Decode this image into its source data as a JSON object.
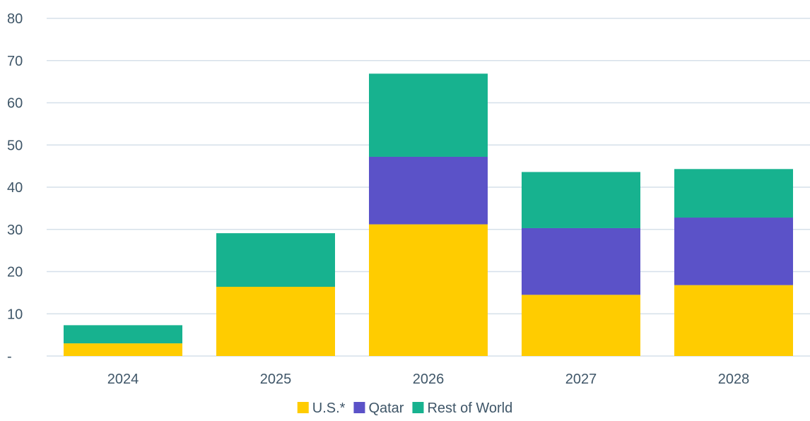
{
  "chart_data": {
    "type": "bar",
    "stacked": true,
    "categories": [
      "2024",
      "2025",
      "2026",
      "2027",
      "2028"
    ],
    "series": [
      {
        "name": "U.S.*",
        "color": "#ffcc00",
        "values": [
          3,
          16.4,
          31.2,
          14.5,
          16.8
        ]
      },
      {
        "name": "Qatar",
        "color": "#5b52c8",
        "values": [
          0,
          0,
          16,
          15.8,
          16
        ]
      },
      {
        "name": "Rest of World",
        "color": "#17b28f",
        "values": [
          4.3,
          12.7,
          19.7,
          13.3,
          11.5
        ]
      }
    ],
    "yticks": [
      "-",
      "10",
      "20",
      "30",
      "40",
      "50",
      "60",
      "70",
      "80"
    ],
    "ylim": [
      0,
      80
    ],
    "grid": true,
    "legend": "bottom-center",
    "title": "",
    "xlabel": "",
    "ylabel": ""
  }
}
